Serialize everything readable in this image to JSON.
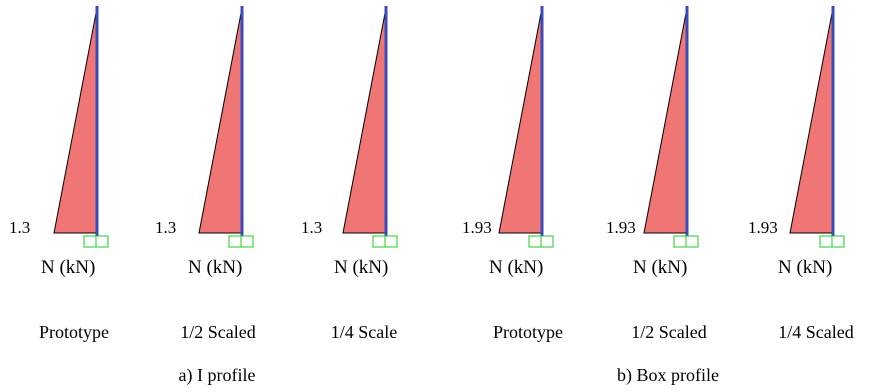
{
  "groups": [
    {
      "caption": "a) I profile",
      "panels": [
        {
          "name": "Prototype",
          "value_label": "1.3",
          "axis_label": "N (kN)"
        },
        {
          "name": "1/2 Scaled",
          "value_label": "1.3",
          "axis_label": "N (kN)"
        },
        {
          "name": "1/4 Scale",
          "value_label": "1.3",
          "axis_label": "N (kN)"
        }
      ]
    },
    {
      "caption": "b) Box profile",
      "panels": [
        {
          "name": "Prototype",
          "value_label": "1.93",
          "axis_label": "N (kN)"
        },
        {
          "name": "1/2 Scaled",
          "value_label": "1.93",
          "axis_label": "N (kN)"
        },
        {
          "name": "1/4 Scaled",
          "value_label": "1.93",
          "axis_label": "N (kN)"
        }
      ]
    }
  ],
  "colors": {
    "diagram_fill": "#f07575",
    "member_line": "#3a4ab8",
    "support": "#22cc22",
    "outline": "#000000"
  }
}
